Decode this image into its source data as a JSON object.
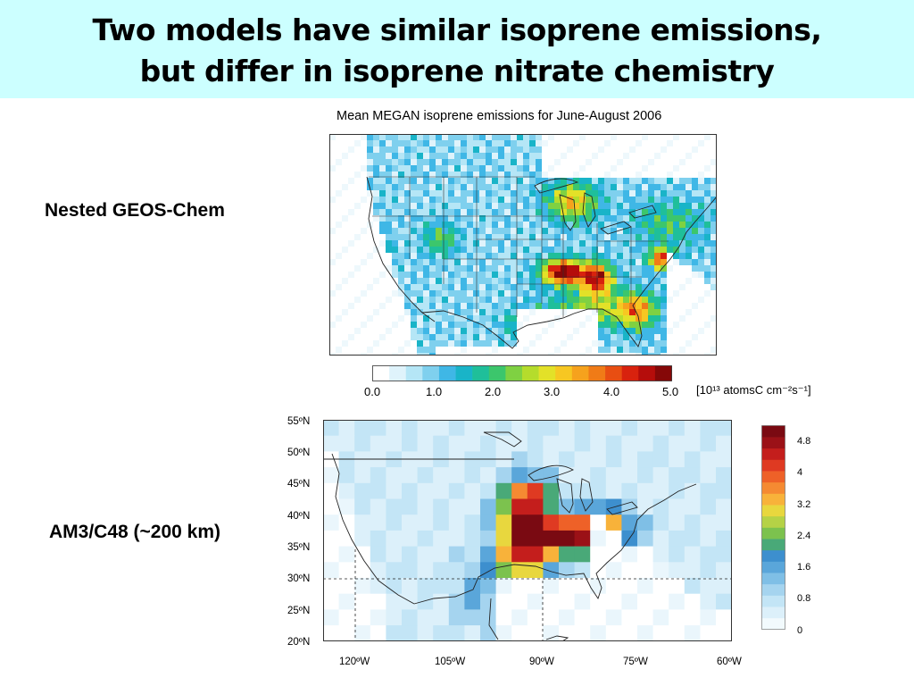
{
  "title": {
    "line1": "Two models have similar isoprene emissions,",
    "line2": "but differ in isoprene nitrate chemistry"
  },
  "panels": [
    {
      "row_label": "Nested GEOS-Chem",
      "map_title": "Mean MEGAN isoprene emissions for June-August 2006",
      "colorbar": {
        "ticks": [
          "0.0",
          "1.0",
          "2.0",
          "3.0",
          "4.0",
          "5.0"
        ],
        "units": "[10¹³ atomsC cm⁻²s⁻¹]",
        "colors": [
          "#ffffff",
          "#dff3fb",
          "#b5e6f6",
          "#7fd0ee",
          "#3fb7e6",
          "#19b4c8",
          "#1fbf9a",
          "#3cc66c",
          "#7fd142",
          "#b5dc2c",
          "#e3e128",
          "#f7c722",
          "#f6a21d",
          "#f07b17",
          "#e84e12",
          "#d8220e",
          "#b50d0b",
          "#850808"
        ],
        "range": [
          0,
          5
        ]
      }
    },
    {
      "row_label": "AM3/C48 (~200 km)",
      "lat_labels": [
        "55ºN",
        "50ºN",
        "45ºN",
        "40ºN",
        "35ºN",
        "30ºN",
        "25ºN",
        "20ºN"
      ],
      "lon_labels": [
        "120ºW",
        "105ºW",
        "90ºW",
        "75ºW",
        "60ºW"
      ],
      "colorbar": {
        "ticks": [
          "4.8",
          "4",
          "3.2",
          "2.4",
          "1.6",
          "0.8",
          "0"
        ],
        "colors": [
          "#f2fafd",
          "#dcf0fa",
          "#c3e5f6",
          "#a5d4ef",
          "#7fbfe6",
          "#5aa6da",
          "#3d8fce",
          "#49a978",
          "#7cc24e",
          "#b5d246",
          "#e8d73e",
          "#f8b23a",
          "#f58a32",
          "#ee6128",
          "#df3a22",
          "#c41e1c",
          "#9b1117",
          "#7a0a12"
        ],
        "range": [
          0,
          5
        ]
      }
    }
  ]
}
